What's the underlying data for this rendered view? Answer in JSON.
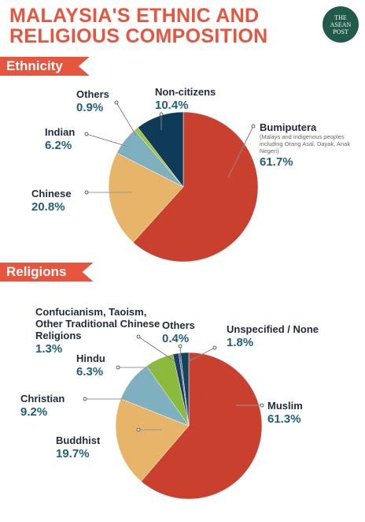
{
  "header": {
    "title_lines": [
      "MALAYSIA'S ETHNIC AND",
      "RELIGIOUS COMPOSITION"
    ],
    "logo": "THE ASEAN POST"
  },
  "chart_data": [
    {
      "type": "pie",
      "section": "Ethnicity",
      "categories": [
        "Bumiputera",
        "Chinese",
        "Indian",
        "Others",
        "Non-citizens"
      ],
      "values": [
        61.7,
        20.8,
        6.2,
        0.9,
        10.4
      ],
      "value_labels": [
        "61.7%",
        "20.8%",
        "6.2%",
        "0.9%",
        "10.4%"
      ],
      "colors": [
        "#c9412e",
        "#e6b56a",
        "#7fb0c0",
        "#9cc43a",
        "#0f3a58"
      ],
      "annotation": "(Malays and indigenous peoples including Orang Asal, Dayak, Anak Negeri)"
    },
    {
      "type": "pie",
      "section": "Religions",
      "categories": [
        "Muslim",
        "Buddhist",
        "Christian",
        "Hindu",
        "Confucianism, Taoism, Other Traditional Chinese Religions",
        "Others",
        "Unspecified / None"
      ],
      "values": [
        61.3,
        19.7,
        9.2,
        6.3,
        1.3,
        0.4,
        1.8
      ],
      "value_labels": [
        "61.3%",
        "19.7%",
        "9.2%",
        "6.3%",
        "1.3%",
        "0.4%",
        "1.8%"
      ],
      "colors": [
        "#c9412e",
        "#e6b56a",
        "#7fb0c0",
        "#8cba3c",
        "#1b3f66",
        "#6a5b8a",
        "#10455c"
      ]
    }
  ]
}
